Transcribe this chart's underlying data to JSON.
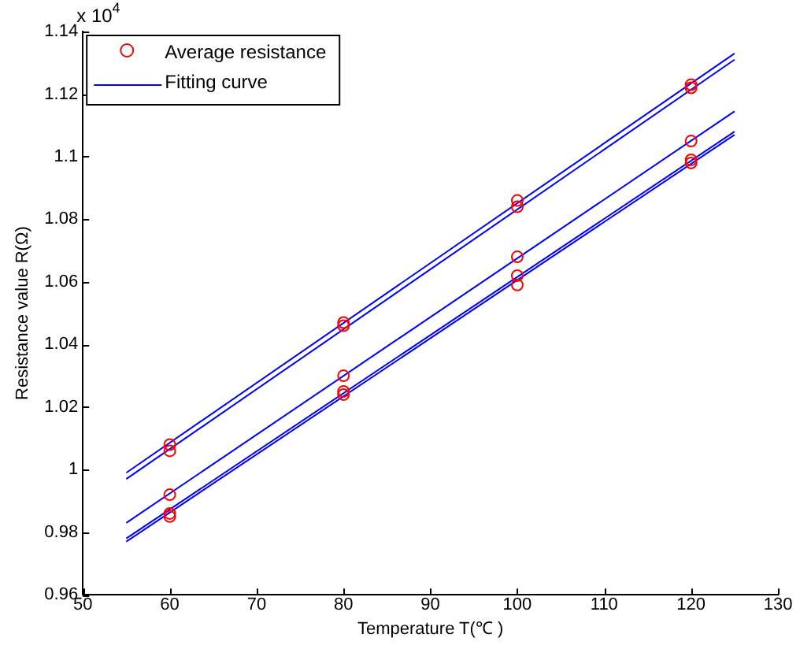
{
  "chart_data": {
    "type": "line",
    "xlabel": "Temperature T(℃ )",
    "ylabel": "Resistance value R(Ω)",
    "annotations": [
      "x 10$^{4}$"
    ],
    "xlim": [
      50,
      130
    ],
    "xticks": [
      50,
      60,
      70,
      80,
      90,
      100,
      110,
      120,
      130
    ],
    "ylim": [
      0.96,
      1.14
    ],
    "yticks": [
      0.96,
      0.98,
      1,
      1.02,
      1.04,
      1.06,
      1.08,
      1.1,
      1.12,
      1.14
    ],
    "grid": false,
    "legend": "top left",
    "line_style": "solid",
    "series": [
      {
        "name": "Average resistance",
        "type": "scatter",
        "marker": "circle",
        "color": "#ff0000",
        "x": [
          60,
          60,
          60,
          60,
          60,
          80,
          80,
          80,
          80,
          80,
          100,
          100,
          100,
          100,
          100,
          120,
          120,
          120,
          120,
          120
        ],
        "values": [
          1.008,
          1.006,
          0.992,
          0.986,
          0.985,
          1.047,
          1.046,
          1.03,
          1.025,
          1.024,
          1.086,
          1.084,
          1.068,
          1.062,
          1.059,
          1.123,
          1.122,
          1.105,
          1.099,
          1.098
        ]
      },
      {
        "name": "Fitting curve",
        "marker": "none",
        "color": "#0000ff",
        "x": [
          55,
          125
        ],
        "values": [
          0.999,
          1.133
        ]
      },
      {
        "marker": "none",
        "color": "#0000ff",
        "x": [
          55,
          125
        ],
        "values": [
          0.997,
          1.131
        ]
      },
      {
        "marker": "none",
        "color": "#0000ff",
        "x": [
          55,
          125
        ],
        "values": [
          0.983,
          1.1145
        ]
      },
      {
        "marker": "none",
        "color": "#0000ff",
        "x": [
          55,
          125
        ],
        "values": [
          0.978,
          1.108
        ]
      },
      {
        "marker": "none",
        "color": "#0000ff",
        "x": [
          55,
          125
        ],
        "values": [
          0.977,
          1.107
        ]
      }
    ]
  }
}
